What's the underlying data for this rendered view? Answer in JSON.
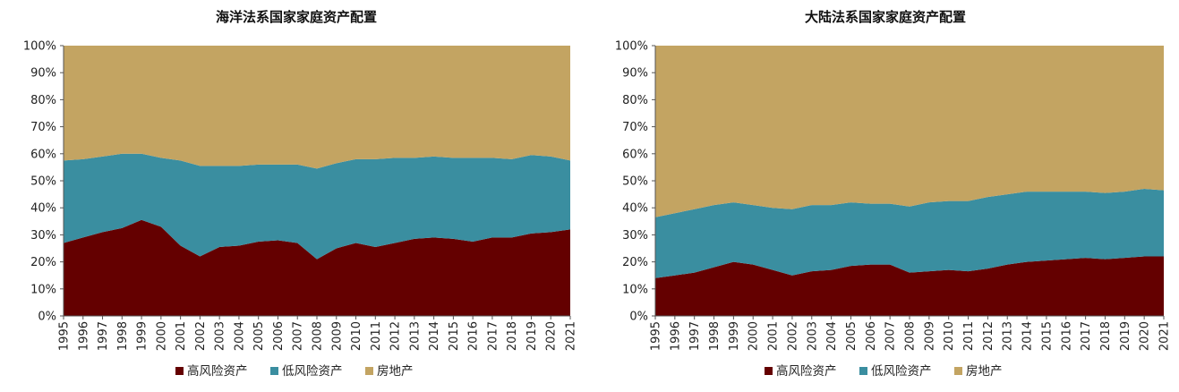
{
  "chart_data": [
    {
      "type": "area",
      "stacked": true,
      "title": "海洋法系国家家庭资产配置",
      "x": [
        "1995",
        "1996",
        "1997",
        "1998",
        "1999",
        "2000",
        "2001",
        "2002",
        "2003",
        "2004",
        "2005",
        "2006",
        "2007",
        "2008",
        "2009",
        "2010",
        "2011",
        "2012",
        "2013",
        "2014",
        "2015",
        "2016",
        "2017",
        "2018",
        "2019",
        "2020",
        "2021"
      ],
      "ylim": [
        0,
        100
      ],
      "y_ticks": [
        "0%",
        "10%",
        "20%",
        "30%",
        "40%",
        "50%",
        "60%",
        "70%",
        "80%",
        "90%",
        "100%"
      ],
      "series": [
        {
          "name": "高风险资产",
          "color": "#640000",
          "values": [
            27,
            29,
            31,
            32.5,
            35.5,
            33,
            26,
            22,
            25.5,
            26,
            27.5,
            28,
            27,
            21,
            25,
            27,
            25.5,
            27,
            28.5,
            29,
            28.5,
            27.5,
            29,
            29,
            30.5,
            31,
            32
          ]
        },
        {
          "name": "低风险资产",
          "color": "#3a8ea0",
          "values": [
            30.5,
            29,
            28,
            27.5,
            24.5,
            25.5,
            31.5,
            33.5,
            30,
            29.5,
            28.5,
            28,
            29,
            33.5,
            31.5,
            31,
            32.5,
            31.5,
            30,
            30,
            30,
            31,
            29.5,
            29,
            29,
            28,
            25.5
          ]
        },
        {
          "name": "房地产",
          "color": "#c3a462",
          "values": [
            42.5,
            42,
            41,
            40,
            40,
            41.5,
            42.5,
            44.5,
            44.5,
            44.5,
            44,
            44,
            44,
            45.5,
            43.5,
            42,
            42,
            41.5,
            41.5,
            41,
            41.5,
            41.5,
            41.5,
            42,
            40.5,
            41,
            42.5
          ]
        }
      ],
      "legend": "bottom"
    },
    {
      "type": "area",
      "stacked": true,
      "title": "大陆法系国家家庭资产配置",
      "x": [
        "1995",
        "1996",
        "1997",
        "1998",
        "1999",
        "2000",
        "2001",
        "2002",
        "2003",
        "2004",
        "2005",
        "2006",
        "2007",
        "2008",
        "2009",
        "2010",
        "2011",
        "2012",
        "2013",
        "2014",
        "2015",
        "2016",
        "2017",
        "2018",
        "2019",
        "2020",
        "2021"
      ],
      "ylim": [
        0,
        100
      ],
      "y_ticks": [
        "0%",
        "10%",
        "20%",
        "30%",
        "40%",
        "50%",
        "60%",
        "70%",
        "80%",
        "90%",
        "100%"
      ],
      "series": [
        {
          "name": "高风险资产",
          "color": "#640000",
          "values": [
            14,
            15,
            16,
            18,
            20,
            19,
            17,
            15,
            16.5,
            17,
            18.5,
            19,
            19,
            16,
            16.5,
            17,
            16.5,
            17.5,
            19,
            20,
            20.5,
            21,
            21.5,
            21,
            21.5,
            22,
            22
          ]
        },
        {
          "name": "低风险资产",
          "color": "#3a8ea0",
          "values": [
            22.5,
            23,
            23.5,
            23,
            22,
            22,
            23,
            24.5,
            24.5,
            24,
            23.5,
            22.5,
            22.5,
            24.5,
            25.5,
            25.5,
            26,
            26.5,
            26,
            26,
            25.5,
            25,
            24.5,
            24.5,
            24.5,
            25,
            24.5
          ]
        },
        {
          "name": "房地产",
          "color": "#c3a462",
          "values": [
            63.5,
            62,
            60.5,
            59,
            58,
            59,
            60,
            60.5,
            59,
            59,
            58,
            58.5,
            58.5,
            59.5,
            58,
            57.5,
            57.5,
            56,
            55,
            54,
            54,
            54,
            54,
            54.5,
            54,
            53,
            53.5
          ]
        }
      ],
      "legend": "bottom"
    }
  ]
}
